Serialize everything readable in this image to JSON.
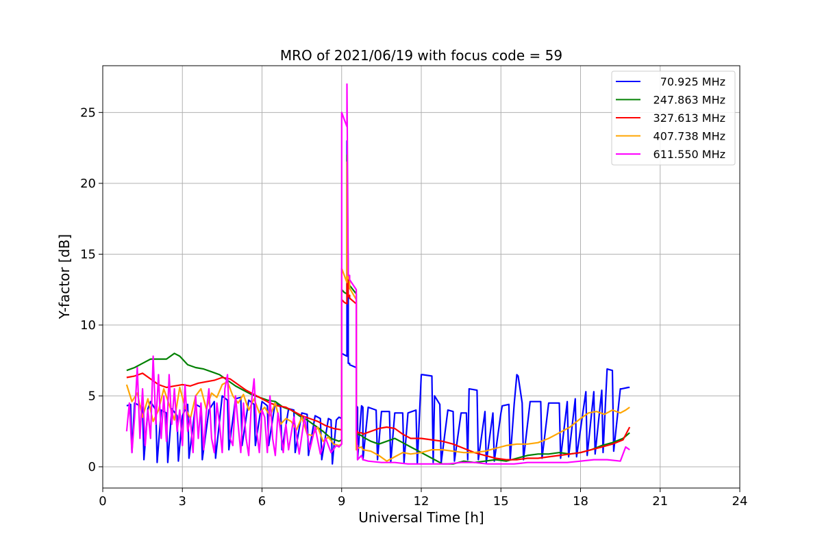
{
  "chart_data": {
    "type": "line",
    "title": "MRO of 2021/06/19 with focus code = 59",
    "xlabel": "Universal Time [h]",
    "ylabel": "Y-factor [dB]",
    "xlim": [
      0,
      24
    ],
    "ylim": [
      -1.5,
      28.3
    ],
    "xticks": [
      0,
      3,
      6,
      9,
      12,
      15,
      18,
      21,
      24
    ],
    "yticks": [
      0,
      5,
      10,
      15,
      20,
      25
    ],
    "grid": true,
    "legend_position": "top-right",
    "series": [
      {
        "name": "70.925 MHz",
        "color": "#0000ff",
        "x": [
          0.9,
          1.05,
          1.1,
          1.2,
          1.3,
          1.5,
          1.55,
          1.7,
          1.8,
          2.0,
          2.05,
          2.2,
          2.4,
          2.45,
          2.6,
          2.8,
          2.85,
          3.0,
          3.2,
          3.25,
          3.5,
          3.7,
          3.75,
          4.0,
          4.2,
          4.25,
          4.5,
          4.7,
          4.75,
          5.0,
          5.2,
          5.25,
          5.5,
          5.7,
          5.75,
          6.0,
          6.2,
          6.25,
          6.5,
          6.7,
          6.75,
          7.0,
          7.2,
          7.25,
          7.5,
          7.7,
          7.75,
          8.0,
          8.2,
          8.25,
          8.5,
          8.6,
          8.65,
          8.8,
          8.9,
          9.0,
          9.0,
          9.1,
          9.2,
          9.2,
          9.25,
          9.25,
          9.3,
          9.3,
          9.55,
          9.55,
          9.6,
          9.6,
          9.75,
          9.8,
          9.8,
          10.0,
          10.3,
          10.35,
          10.5,
          10.8,
          10.85,
          11.0,
          11.3,
          11.35,
          11.5,
          11.8,
          11.85,
          12.0,
          12.05,
          12.4,
          12.45,
          12.5,
          12.7,
          12.75,
          13.0,
          13.2,
          13.25,
          13.5,
          13.7,
          13.75,
          13.8,
          14.1,
          14.15,
          14.4,
          14.45,
          14.7,
          14.75,
          15.0,
          15.05,
          15.3,
          15.35,
          15.5,
          15.6,
          15.65,
          15.8,
          15.85,
          16.1,
          16.15,
          16.5,
          16.55,
          16.8,
          16.85,
          17.2,
          17.25,
          17.5,
          17.55,
          17.8,
          17.85,
          18.2,
          18.25,
          18.5,
          18.55,
          18.8,
          18.85,
          19.0,
          19.2,
          19.25,
          19.5,
          19.55,
          19.8,
          19.85
        ],
        "y": [
          4.3,
          4.4,
          1.0,
          4.5,
          4.4,
          4.2,
          0.5,
          4.1,
          4.6,
          4.0,
          0.3,
          4.0,
          3.8,
          0.3,
          4.1,
          3.6,
          0.4,
          3.6,
          4.4,
          0.6,
          4.4,
          4.2,
          0.5,
          4.0,
          4.6,
          0.6,
          5.0,
          4.7,
          1.2,
          4.8,
          4.9,
          1.5,
          4.7,
          4.4,
          1.5,
          4.6,
          4.3,
          1.5,
          4.6,
          4.2,
          1.2,
          4.1,
          4.0,
          1.0,
          3.8,
          3.7,
          0.8,
          3.6,
          3.4,
          0.5,
          3.4,
          3.3,
          0.2,
          3.3,
          3.5,
          3.4,
          8.0,
          7.9,
          7.8,
          23.0,
          12.0,
          7.3,
          7.3,
          7.2,
          7.0,
          4.3,
          4.2,
          0.5,
          4.3,
          4.2,
          0.5,
          4.2,
          4.0,
          0.5,
          3.9,
          3.9,
          0.3,
          3.8,
          3.8,
          0.3,
          3.8,
          4.0,
          0.2,
          6.5,
          6.5,
          6.4,
          0.3,
          5.0,
          4.4,
          0.3,
          4.0,
          3.9,
          0.4,
          3.8,
          3.8,
          0.5,
          5.5,
          5.4,
          0.5,
          3.9,
          0.3,
          3.8,
          0.4,
          3.8,
          4.3,
          4.4,
          0.5,
          4.4,
          6.5,
          6.4,
          4.5,
          0.5,
          4.6,
          4.6,
          4.6,
          0.6,
          4.5,
          4.5,
          4.5,
          0.6,
          4.6,
          0.7,
          4.8,
          0.7,
          5.3,
          0.8,
          5.3,
          0.9,
          5.4,
          1.0,
          6.9,
          6.8,
          1.1,
          5.5,
          5.5,
          5.6,
          5.6
        ]
      },
      {
        "name": "247.863 MHz",
        "color": "#008000",
        "x": [
          0.9,
          1.2,
          1.5,
          1.8,
          2.1,
          2.4,
          2.7,
          2.9,
          3.2,
          3.5,
          3.8,
          4.1,
          4.4,
          4.7,
          5.0,
          5.3,
          5.6,
          5.9,
          6.2,
          6.5,
          6.8,
          7.1,
          7.4,
          7.7,
          8.0,
          8.3,
          8.6,
          8.9,
          9.0,
          9.0,
          9.1,
          9.2,
          9.2,
          9.25,
          9.3,
          9.3,
          9.55,
          9.55,
          9.6,
          9.6,
          9.75,
          9.8,
          9.8,
          10.1,
          10.4,
          10.7,
          11.0,
          11.3,
          11.6,
          12.0,
          12.4,
          12.8,
          13.2,
          13.6,
          14.0,
          14.4,
          14.8,
          15.2,
          15.6,
          16.0,
          16.4,
          16.8,
          17.2,
          17.6,
          18.0,
          18.4,
          18.8,
          19.2,
          19.6,
          19.85
        ],
        "y": [
          6.8,
          7.0,
          7.3,
          7.6,
          7.6,
          7.6,
          8.0,
          7.8,
          7.2,
          7.0,
          6.9,
          6.7,
          6.5,
          6.1,
          5.7,
          5.4,
          5.1,
          4.9,
          4.7,
          4.6,
          4.2,
          4.0,
          3.6,
          3.3,
          2.9,
          2.5,
          2.0,
          1.8,
          1.9,
          12.5,
          12.3,
          12.2,
          22.0,
          13.0,
          13.0,
          12.8,
          12.2,
          2.4,
          2.3,
          2.3,
          2.2,
          2.1,
          2.1,
          1.8,
          1.6,
          1.8,
          2.0,
          1.7,
          1.4,
          1.0,
          0.6,
          0.2,
          0.2,
          0.4,
          0.3,
          0.4,
          0.5,
          0.4,
          0.6,
          0.8,
          0.9,
          0.9,
          1.0,
          0.9,
          1.0,
          1.2,
          1.5,
          1.7,
          2.0,
          2.4
        ]
      },
      {
        "name": "327.613 MHz",
        "color": "#ff0000",
        "x": [
          0.9,
          1.2,
          1.5,
          1.8,
          2.1,
          2.4,
          2.7,
          3.0,
          3.3,
          3.6,
          3.9,
          4.2,
          4.5,
          4.8,
          5.1,
          5.4,
          5.7,
          6.0,
          6.3,
          6.6,
          6.9,
          7.2,
          7.5,
          7.8,
          8.1,
          8.4,
          8.7,
          9.0,
          9.0,
          9.1,
          9.2,
          9.2,
          9.25,
          9.3,
          9.3,
          9.55,
          9.55,
          9.6,
          9.6,
          9.75,
          9.8,
          9.8,
          10.1,
          10.4,
          10.7,
          11.0,
          11.3,
          11.6,
          12.0,
          12.4,
          12.8,
          13.2,
          13.6,
          14.0,
          14.4,
          14.8,
          15.2,
          15.6,
          16.0,
          16.4,
          16.8,
          17.2,
          17.6,
          18.0,
          18.4,
          18.8,
          19.2,
          19.6,
          19.85
        ],
        "y": [
          6.3,
          6.4,
          6.6,
          6.2,
          5.8,
          5.6,
          5.7,
          5.8,
          5.7,
          5.9,
          6.0,
          6.1,
          6.3,
          6.2,
          5.8,
          5.4,
          5.1,
          4.8,
          4.5,
          4.3,
          4.2,
          3.9,
          3.6,
          3.4,
          3.2,
          2.9,
          2.7,
          2.6,
          11.8,
          11.6,
          11.5,
          20.0,
          12.0,
          12.1,
          11.9,
          11.5,
          2.5,
          2.5,
          2.4,
          2.4,
          2.3,
          2.3,
          2.5,
          2.7,
          2.8,
          2.7,
          2.3,
          2.0,
          2.0,
          1.9,
          1.8,
          1.6,
          1.3,
          1.0,
          0.8,
          0.6,
          0.5,
          0.5,
          0.6,
          0.6,
          0.7,
          0.8,
          0.9,
          1.0,
          1.2,
          1.4,
          1.6,
          1.9,
          2.8
        ]
      },
      {
        "name": "407.738 MHz",
        "color": "#ffa500",
        "x": [
          0.9,
          1.1,
          1.3,
          1.5,
          1.7,
          1.9,
          2.1,
          2.3,
          2.5,
          2.7,
          2.9,
          3.1,
          3.3,
          3.5,
          3.7,
          3.9,
          4.1,
          4.3,
          4.5,
          4.7,
          4.9,
          5.1,
          5.3,
          5.5,
          5.7,
          5.9,
          6.1,
          6.3,
          6.5,
          6.7,
          6.9,
          7.1,
          7.3,
          7.5,
          7.7,
          7.9,
          8.1,
          8.3,
          8.5,
          8.7,
          8.9,
          9.0,
          9.0,
          9.1,
          9.2,
          9.2,
          9.25,
          9.3,
          9.3,
          9.55,
          9.55,
          9.6,
          9.6,
          9.75,
          9.8,
          9.8,
          10.1,
          10.4,
          10.7,
          11.0,
          11.3,
          11.6,
          12.0,
          12.4,
          12.8,
          13.2,
          13.6,
          14.0,
          14.4,
          14.8,
          15.2,
          15.6,
          16.0,
          16.4,
          16.8,
          17.2,
          17.6,
          18.0,
          18.3,
          18.6,
          18.9,
          19.2,
          19.5,
          19.7,
          19.85
        ],
        "y": [
          5.8,
          4.6,
          5.2,
          3.5,
          4.8,
          3.2,
          4.0,
          5.5,
          4.4,
          3.3,
          5.6,
          4.2,
          3.4,
          5.0,
          5.5,
          4.1,
          5.2,
          4.9,
          5.8,
          6.0,
          5.0,
          4.5,
          5.1,
          4.0,
          4.8,
          3.8,
          4.2,
          3.6,
          4.5,
          3.0,
          3.4,
          3.2,
          2.6,
          3.5,
          2.3,
          2.2,
          2.8,
          1.8,
          2.1,
          1.6,
          1.5,
          1.6,
          14.0,
          13.5,
          13.0,
          21.5,
          13.3,
          13.2,
          12.6,
          11.8,
          1.2,
          1.5,
          1.3,
          1.4,
          1.2,
          1.2,
          1.1,
          0.8,
          0.4,
          0.7,
          1.0,
          0.9,
          1.0,
          1.2,
          1.2,
          1.1,
          1.0,
          1.0,
          1.1,
          1.3,
          1.5,
          1.6,
          1.6,
          1.7,
          2.0,
          2.4,
          2.8,
          3.4,
          3.8,
          3.9,
          3.7,
          4.0,
          3.8,
          4.0,
          4.2
        ]
      },
      {
        "name": "611.550 MHz",
        "color": "#ff00ff",
        "x": [
          0.9,
          1.0,
          1.1,
          1.2,
          1.3,
          1.4,
          1.5,
          1.6,
          1.7,
          1.8,
          1.9,
          2.0,
          2.1,
          2.2,
          2.3,
          2.4,
          2.5,
          2.6,
          2.7,
          2.8,
          2.9,
          3.0,
          3.1,
          3.2,
          3.3,
          3.4,
          3.5,
          3.6,
          3.7,
          3.8,
          3.9,
          4.0,
          4.1,
          4.2,
          4.3,
          4.4,
          4.5,
          4.6,
          4.7,
          4.8,
          4.9,
          5.0,
          5.1,
          5.2,
          5.3,
          5.4,
          5.5,
          5.6,
          5.7,
          5.8,
          5.9,
          6.0,
          6.1,
          6.2,
          6.3,
          6.4,
          6.5,
          6.6,
          6.7,
          6.8,
          6.9,
          7.0,
          7.2,
          7.4,
          7.6,
          7.8,
          8.0,
          8.2,
          8.4,
          8.6,
          8.8,
          8.9,
          9.0,
          9.0,
          9.1,
          9.2,
          9.2,
          9.25,
          9.3,
          9.3,
          9.55,
          9.55,
          9.6,
          9.6,
          9.75,
          9.8,
          9.8,
          10.0,
          10.5,
          11.0,
          11.5,
          12.0,
          12.5,
          13.0,
          13.5,
          14.0,
          14.5,
          15.0,
          15.5,
          16.0,
          16.5,
          17.0,
          17.5,
          18.0,
          18.5,
          19.0,
          19.5,
          19.7,
          19.85
        ],
        "y": [
          2.5,
          4.5,
          1.0,
          3.5,
          7.0,
          2.0,
          5.5,
          1.5,
          4.0,
          2.0,
          7.8,
          3.0,
          6.5,
          2.0,
          5.0,
          1.8,
          6.5,
          3.0,
          5.5,
          2.5,
          4.0,
          1.5,
          5.8,
          2.5,
          3.5,
          1.0,
          5.0,
          2.0,
          4.5,
          1.2,
          3.8,
          5.5,
          2.0,
          1.0,
          4.5,
          3.0,
          1.0,
          5.5,
          6.5,
          2.0,
          1.5,
          5.0,
          3.0,
          1.0,
          4.5,
          2.0,
          0.8,
          4.5,
          6.2,
          2.5,
          1.0,
          4.0,
          3.5,
          1.0,
          5.0,
          2.0,
          0.8,
          3.8,
          2.5,
          1.0,
          3.0,
          1.2,
          3.5,
          0.9,
          3.5,
          1.2,
          2.8,
          0.9,
          2.0,
          1.0,
          1.5,
          1.4,
          1.6,
          25.0,
          24.5,
          24.0,
          27.0,
          13.5,
          13.5,
          13.2,
          12.5,
          2.5,
          1.0,
          0.5,
          0.8,
          0.5,
          0.5,
          0.4,
          0.3,
          0.3,
          0.2,
          0.2,
          0.2,
          0.2,
          0.3,
          0.3,
          0.2,
          0.2,
          0.2,
          0.3,
          0.3,
          0.3,
          0.3,
          0.4,
          0.5,
          0.5,
          0.4,
          1.4,
          1.2
        ]
      }
    ]
  }
}
